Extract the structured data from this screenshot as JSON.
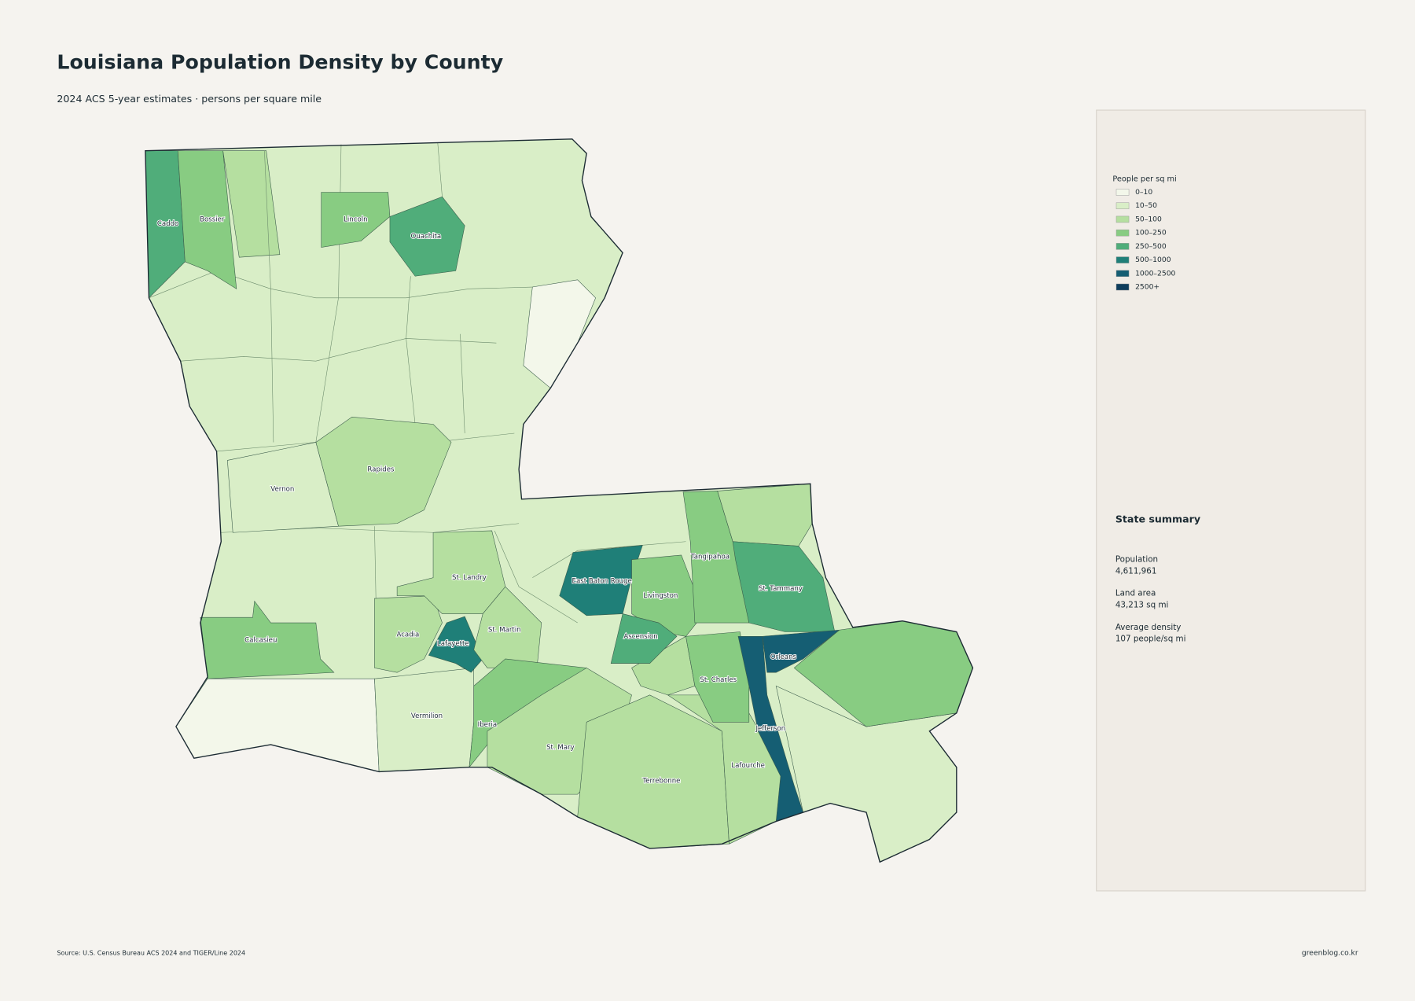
{
  "header": {
    "title": "Louisiana Population Density by County",
    "subtitle": "2024 ACS 5-year estimates · persons per square mile"
  },
  "legend": {
    "title": "People per sq mi",
    "items": [
      {
        "label": "0–10",
        "color": "#f3f7ea"
      },
      {
        "label": "10–50",
        "color": "#d9eec7"
      },
      {
        "label": "50–100",
        "color": "#b5dfa0"
      },
      {
        "label": "100–250",
        "color": "#88cc82"
      },
      {
        "label": "250–500",
        "color": "#50ad7a"
      },
      {
        "label": "500–1000",
        "color": "#1f7f78"
      },
      {
        "label": "1000–2500",
        "color": "#155e73"
      },
      {
        "label": "2500+",
        "color": "#0e3d5c"
      }
    ]
  },
  "parishes": [
    {
      "name": "Caddo",
      "class": 4
    },
    {
      "name": "Bossier",
      "class": 3
    },
    {
      "name": "Lincoln",
      "class": 3
    },
    {
      "name": "Ouachita",
      "class": 4
    },
    {
      "name": "Rapides",
      "class": 2
    },
    {
      "name": "Vernon",
      "class": 1
    },
    {
      "name": "Calcasieu",
      "class": 3
    },
    {
      "name": "Vermilion",
      "class": 1
    },
    {
      "name": "Acadia",
      "class": 2
    },
    {
      "name": "Lafayette",
      "class": 5
    },
    {
      "name": "St. Landry",
      "class": 2
    },
    {
      "name": "St. Martin",
      "class": 2
    },
    {
      "name": "Iberia",
      "class": 3
    },
    {
      "name": "St. Mary",
      "class": 2
    },
    {
      "name": "Terrebonne",
      "class": 2
    },
    {
      "name": "Lafourche",
      "class": 2
    },
    {
      "name": "East Baton Rouge",
      "class": 5
    },
    {
      "name": "Livingston",
      "class": 3
    },
    {
      "name": "Tangipahoa",
      "class": 3
    },
    {
      "name": "St. Tammany",
      "class": 4
    },
    {
      "name": "Ascension",
      "class": 4
    },
    {
      "name": "St. Charles",
      "class": 3
    },
    {
      "name": "Orleans",
      "class": 6
    },
    {
      "name": "Jefferson",
      "class": 6
    }
  ],
  "summary": {
    "title": "State summary",
    "items": [
      {
        "label": "Population",
        "value": "4,611,961"
      },
      {
        "label": "Land area",
        "value": "43,213 sq mi"
      },
      {
        "label": "Average density",
        "value": "107 people/sq mi"
      }
    ]
  },
  "footer": {
    "source": "Source: U.S. Census Bureau ACS 2024 and TIGER/Line 2024",
    "credit": "greenblog.co.kr"
  }
}
